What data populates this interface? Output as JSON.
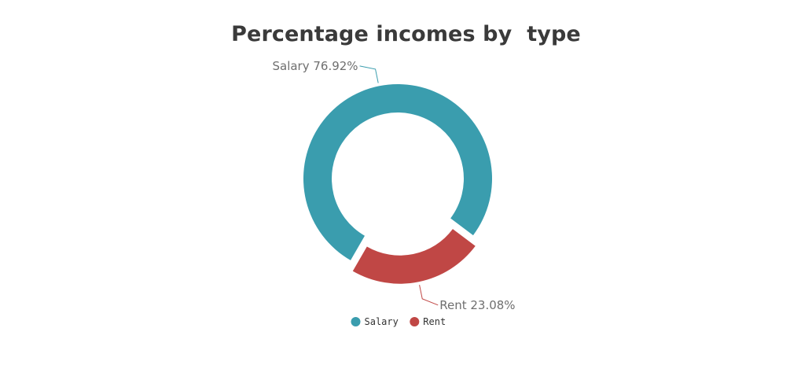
{
  "chart_data": {
    "type": "pie",
    "title": "Percentage incomes by  type",
    "donut": true,
    "categories": [
      "Salary",
      "Rent"
    ],
    "values": [
      76.92,
      23.08
    ],
    "labels": [
      "Salary 76.92%",
      "Rent 23.08%"
    ],
    "colors": [
      "#3a9dae",
      "#c04745"
    ],
    "legend": {
      "position": "bottom",
      "items": [
        "Salary",
        "Rent"
      ]
    }
  }
}
